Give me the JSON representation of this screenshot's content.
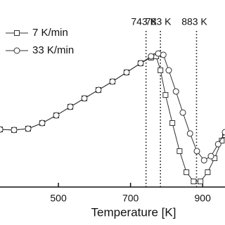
{
  "chart_data": {
    "type": "line",
    "x_label": "Temperature [K]",
    "xlim": [
      338,
      962
    ],
    "xticks": [
      500,
      700,
      900
    ],
    "ylim": [
      0,
      100
    ],
    "series": [
      {
        "name": "7 K/min",
        "marker": "square",
        "color": "#333333",
        "x": [
          338,
          377,
          416,
          455,
          494,
          533,
          572,
          611,
          650,
          689,
          728,
          757,
          771,
          783,
          797,
          816,
          836,
          855,
          875,
          894,
          914,
          933,
          953,
          962
        ],
        "values": [
          30.8,
          30.5,
          31.2,
          34.2,
          38.3,
          42.9,
          47.4,
          51.9,
          56.4,
          61.3,
          66.2,
          69.2,
          69.9,
          62.4,
          49.2,
          34.2,
          19.2,
          7.9,
          3.0,
          3.0,
          7.9,
          15.4,
          24.8,
          27.8
        ]
      },
      {
        "name": "33 K/min",
        "marker": "circle",
        "color": "#333333",
        "x": [
          338,
          377,
          416,
          455,
          494,
          533,
          572,
          611,
          650,
          689,
          728,
          757,
          777,
          791,
          806,
          826,
          845,
          865,
          884,
          904,
          923,
          943,
          962
        ],
        "values": [
          30.8,
          30.5,
          31.2,
          34.2,
          38.3,
          42.9,
          47.4,
          51.9,
          56.4,
          61.3,
          66.2,
          69.9,
          71.4,
          70.7,
          62.4,
          51.1,
          39.8,
          28.6,
          19.2,
          14.3,
          16.5,
          22.9,
          29.3
        ]
      }
    ],
    "vlines": [
      {
        "x": 743,
        "label": "743 K"
      },
      {
        "x": 783,
        "label": "783 K"
      },
      {
        "x": 883,
        "label": "883 K"
      }
    ]
  }
}
